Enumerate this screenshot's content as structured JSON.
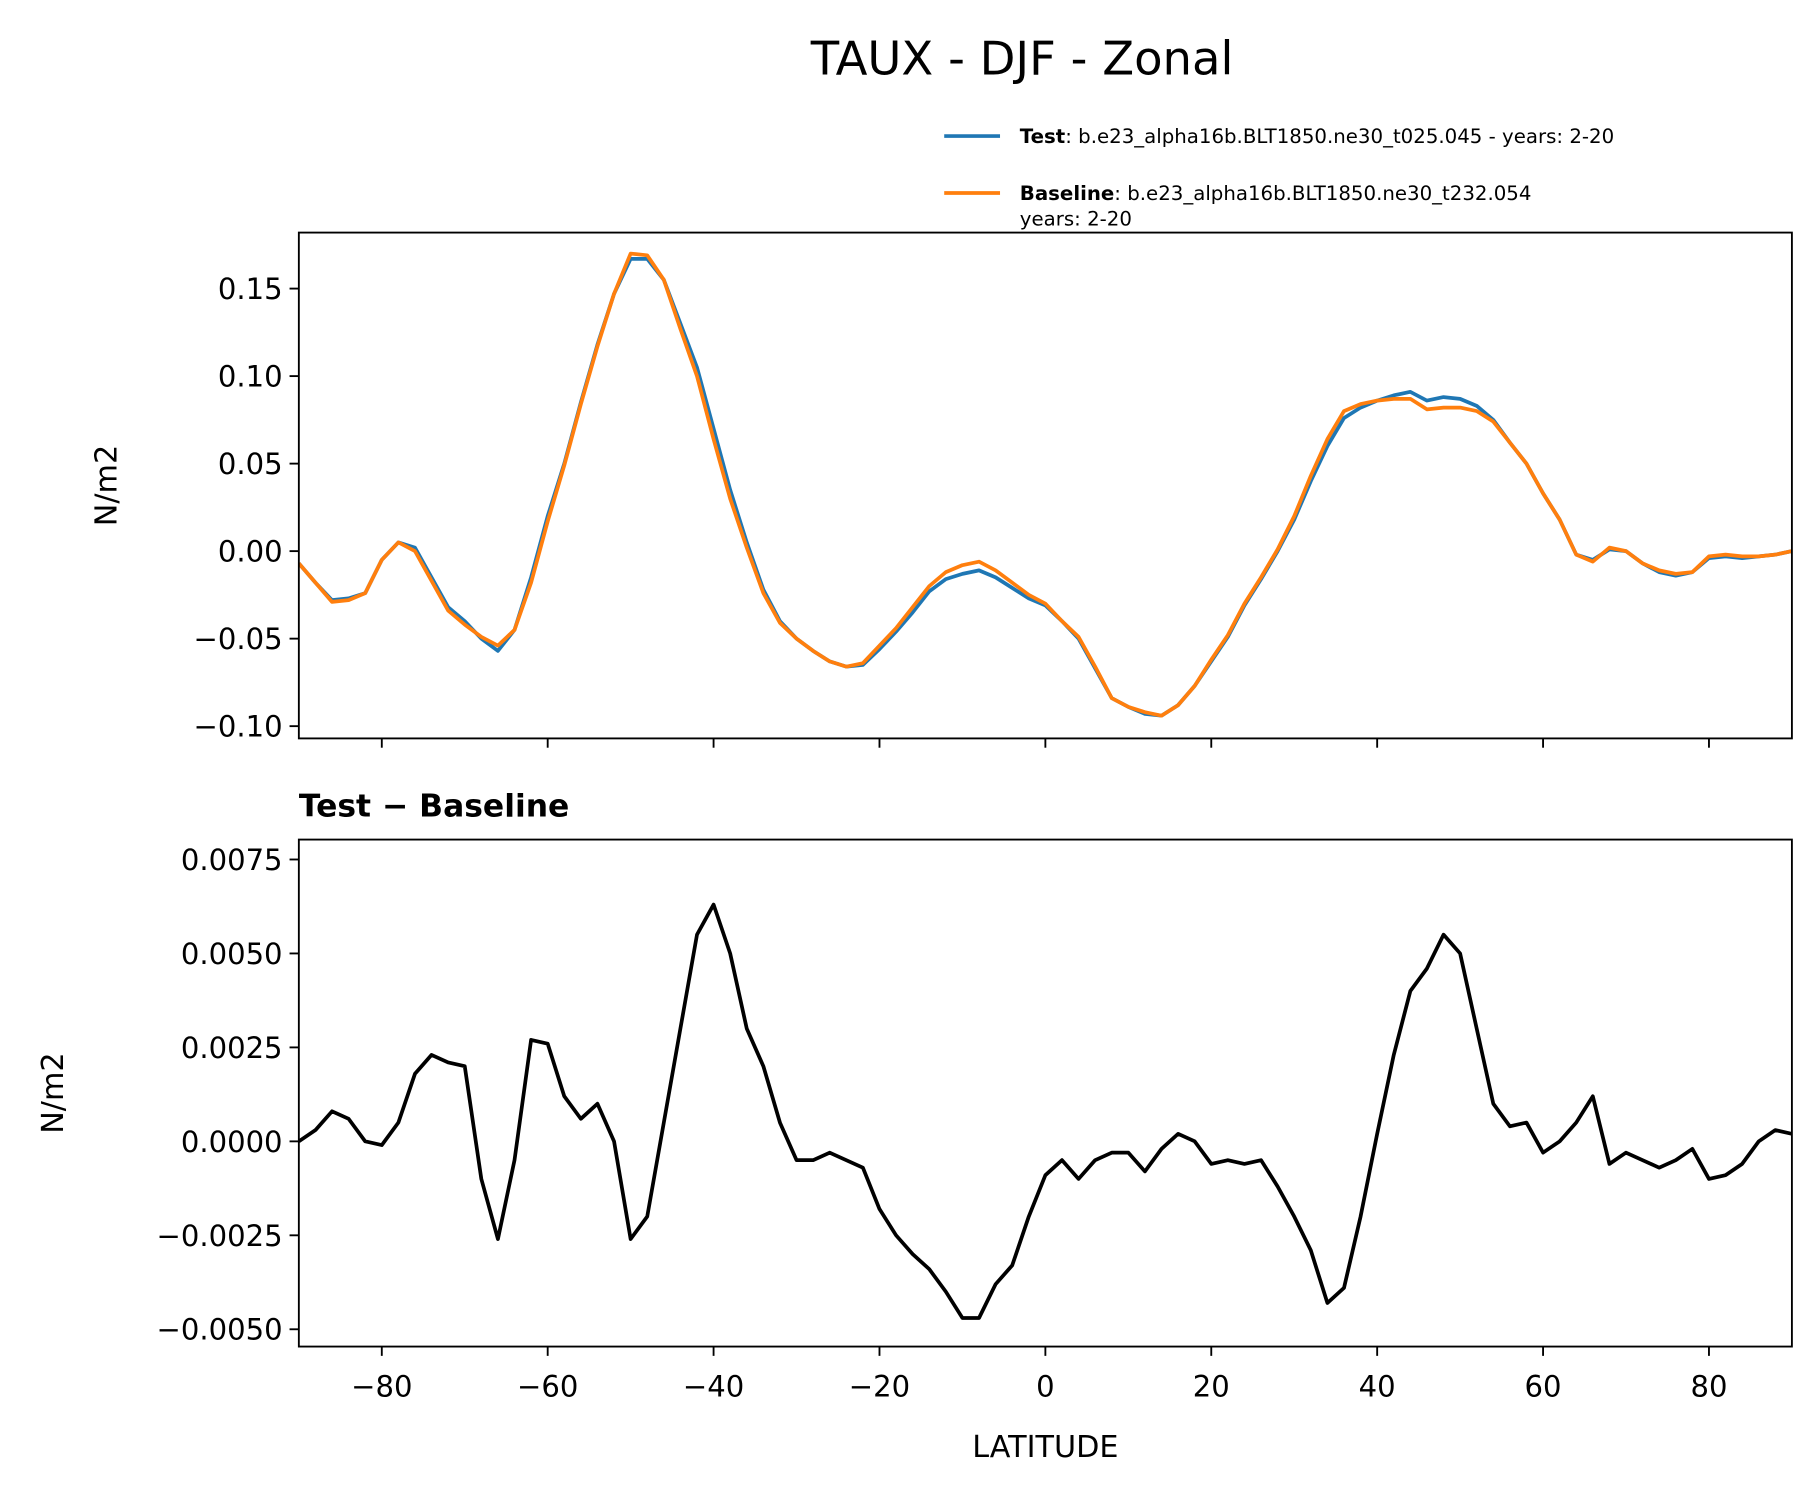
{
  "chart_data": [
    {
      "type": "line",
      "title": "TAUX - DJF - Zonal",
      "ylabel": "N/m2",
      "x": [
        -90,
        -88,
        -86,
        -84,
        -82,
        -80,
        -78,
        -76,
        -74,
        -72,
        -70,
        -68,
        -66,
        -64,
        -62,
        -60,
        -58,
        -56,
        -54,
        -52,
        -50,
        -48,
        -46,
        -44,
        -42,
        -40,
        -38,
        -36,
        -34,
        -32,
        -30,
        -28,
        -26,
        -24,
        -22,
        -20,
        -18,
        -16,
        -14,
        -12,
        -10,
        -8,
        -6,
        -4,
        -2,
        0,
        2,
        4,
        6,
        8,
        10,
        12,
        14,
        16,
        18,
        20,
        22,
        24,
        26,
        28,
        30,
        32,
        34,
        36,
        38,
        40,
        42,
        44,
        46,
        48,
        50,
        52,
        54,
        56,
        58,
        60,
        62,
        64,
        66,
        68,
        70,
        72,
        74,
        76,
        78,
        80,
        82,
        84,
        86,
        88,
        90
      ],
      "series": [
        {
          "name": "Test",
          "description": [
            ": b.e23_alpha16b.BLT1850.ne30_t025.045 - years: 2-20"
          ],
          "color": "#1f77b4",
          "values": [
            -0.007,
            -0.018,
            -0.028,
            -0.027,
            -0.024,
            -0.005,
            0.005,
            0.002,
            -0.015,
            -0.032,
            -0.04,
            -0.05,
            -0.057,
            -0.045,
            -0.015,
            0.02,
            0.05,
            0.085,
            0.118,
            0.147,
            0.167,
            0.167,
            0.155,
            0.13,
            0.105,
            0.07,
            0.035,
            0.005,
            -0.022,
            -0.04,
            -0.05,
            -0.057,
            -0.063,
            -0.066,
            -0.065,
            -0.056,
            -0.046,
            -0.035,
            -0.023,
            -0.016,
            -0.013,
            -0.011,
            -0.015,
            -0.021,
            -0.027,
            -0.031,
            -0.04,
            -0.05,
            -0.067,
            -0.084,
            -0.089,
            -0.093,
            -0.094,
            -0.088,
            -0.077,
            -0.063,
            -0.049,
            -0.031,
            -0.016,
            0.0,
            0.018,
            0.04,
            0.06,
            0.076,
            0.082,
            0.086,
            0.089,
            0.091,
            0.086,
            0.088,
            0.087,
            0.083,
            0.075,
            0.062,
            0.05,
            0.033,
            0.018,
            -0.002,
            -0.005,
            0.001,
            0.0,
            -0.007,
            -0.012,
            -0.014,
            -0.012,
            -0.004,
            -0.003,
            -0.004,
            -0.003,
            -0.002,
            0.0
          ]
        },
        {
          "name": "Baseline",
          "description": [
            ": b.e23_alpha16b.BLT1850.ne30_t232.054",
            "years: 2-20"
          ],
          "color": "#ff7f0e",
          "values": [
            -0.007,
            -0.018,
            -0.029,
            -0.028,
            -0.024,
            -0.005,
            0.005,
            0.0,
            -0.017,
            -0.034,
            -0.042,
            -0.049,
            -0.054,
            -0.045,
            -0.018,
            0.017,
            0.049,
            0.084,
            0.117,
            0.147,
            0.17,
            0.169,
            0.155,
            0.127,
            0.1,
            0.064,
            0.03,
            0.002,
            -0.024,
            -0.041,
            -0.05,
            -0.057,
            -0.063,
            -0.066,
            -0.064,
            -0.054,
            -0.044,
            -0.032,
            -0.02,
            -0.012,
            -0.008,
            -0.006,
            -0.011,
            -0.018,
            -0.025,
            -0.03,
            -0.04,
            -0.049,
            -0.066,
            -0.084,
            -0.089,
            -0.092,
            -0.094,
            -0.088,
            -0.077,
            -0.062,
            -0.048,
            -0.03,
            -0.015,
            0.001,
            0.02,
            0.043,
            0.064,
            0.08,
            0.084,
            0.086,
            0.087,
            0.087,
            0.081,
            0.082,
            0.082,
            0.08,
            0.074,
            0.062,
            0.05,
            0.033,
            0.018,
            -0.002,
            -0.006,
            0.002,
            0.0,
            -0.007,
            -0.011,
            -0.013,
            -0.012,
            -0.003,
            -0.002,
            -0.003,
            -0.003,
            -0.002,
            0.0
          ]
        }
      ],
      "xlim": [
        -90,
        90
      ],
      "xticks": [
        {
          "value": -80,
          "label": "−80"
        },
        {
          "value": -60,
          "label": "−60"
        },
        {
          "value": -40,
          "label": "−40"
        },
        {
          "value": -20,
          "label": "−20"
        },
        0,
        20,
        40,
        60,
        80
      ],
      "ylim": [
        -0.107,
        0.182
      ],
      "yticks": [
        {
          "value": -0.1,
          "label": "−0.10"
        },
        {
          "value": -0.05,
          "label": "−0.05"
        },
        {
          "value": 0,
          "label": "0.00"
        },
        0.05,
        {
          "value": 0.1,
          "label": "0.10"
        },
        0.15
      ],
      "legend": "upper right"
    },
    {
      "type": "line",
      "title": "Test − Baseline",
      "ylabel": "N/m2",
      "xlabel": "LATITUDE",
      "x": [
        -90,
        -88,
        -86,
        -84,
        -82,
        -80,
        -78,
        -76,
        -74,
        -72,
        -70,
        -68,
        -66,
        -64,
        -62,
        -60,
        -58,
        -56,
        -54,
        -52,
        -50,
        -48,
        -46,
        -44,
        -42,
        -40,
        -38,
        -36,
        -34,
        -32,
        -30,
        -28,
        -26,
        -24,
        -22,
        -20,
        -18,
        -16,
        -14,
        -12,
        -10,
        -8,
        -6,
        -4,
        -2,
        0,
        2,
        4,
        6,
        8,
        10,
        12,
        14,
        16,
        18,
        20,
        22,
        24,
        26,
        28,
        30,
        32,
        34,
        36,
        38,
        40,
        42,
        44,
        46,
        48,
        50,
        52,
        54,
        56,
        58,
        60,
        62,
        64,
        66,
        68,
        70,
        72,
        74,
        76,
        78,
        80,
        82,
        84,
        86,
        88,
        90
      ],
      "series": [
        {
          "color": "#000000",
          "values": [
            0.0,
            0.0003,
            0.0008,
            0.0006,
            0.0,
            -0.0001,
            0.0005,
            0.0018,
            0.0023,
            0.0021,
            0.002,
            -0.001,
            -0.0026,
            -0.0005,
            0.0027,
            0.0026,
            0.0012,
            0.0006,
            0.001,
            0.0,
            -0.0026,
            -0.002,
            0.0005,
            0.003,
            0.0055,
            0.0063,
            0.005,
            0.003,
            0.002,
            0.0005,
            -0.0005,
            -0.0005,
            -0.0003,
            -0.0005,
            -0.0007,
            -0.0018,
            -0.0025,
            -0.003,
            -0.0034,
            -0.004,
            -0.0047,
            -0.0047,
            -0.0038,
            -0.0033,
            -0.002,
            -0.0009,
            -0.0005,
            -0.001,
            -0.0005,
            -0.0003,
            -0.0003,
            -0.0008,
            -0.0002,
            0.0002,
            0.0,
            -0.0006,
            -0.0005,
            -0.0006,
            -0.0005,
            -0.0012,
            -0.002,
            -0.0029,
            -0.0043,
            -0.0039,
            -0.002,
            0.0002,
            0.0023,
            0.004,
            0.0046,
            0.0055,
            0.005,
            0.003,
            0.001,
            0.0004,
            0.0005,
            -0.0003,
            0.0,
            0.0005,
            0.0012,
            -0.0006,
            -0.0003,
            -0.0005,
            -0.0007,
            -0.0005,
            -0.0002,
            -0.001,
            -0.0009,
            -0.0006,
            0.0,
            0.0003,
            0.0002
          ]
        }
      ],
      "xlim": [
        -90,
        90
      ],
      "xticks": [
        {
          "value": -80,
          "label": "−80"
        },
        {
          "value": -60,
          "label": "−60"
        },
        {
          "value": -40,
          "label": "−40"
        },
        {
          "value": -20,
          "label": "−20"
        },
        0,
        20,
        40,
        60,
        80
      ],
      "ylim": [
        -0.00546,
        0.00803
      ],
      "yticks": [
        {
          "value": -0.005,
          "label": "−0.0050"
        },
        {
          "value": -0.0025,
          "label": "−0.0025"
        },
        {
          "value": 0,
          "label": "0.0000"
        },
        0.0025,
        {
          "value": 0.005,
          "label": "0.0050"
        },
        0.0075
      ]
    }
  ]
}
